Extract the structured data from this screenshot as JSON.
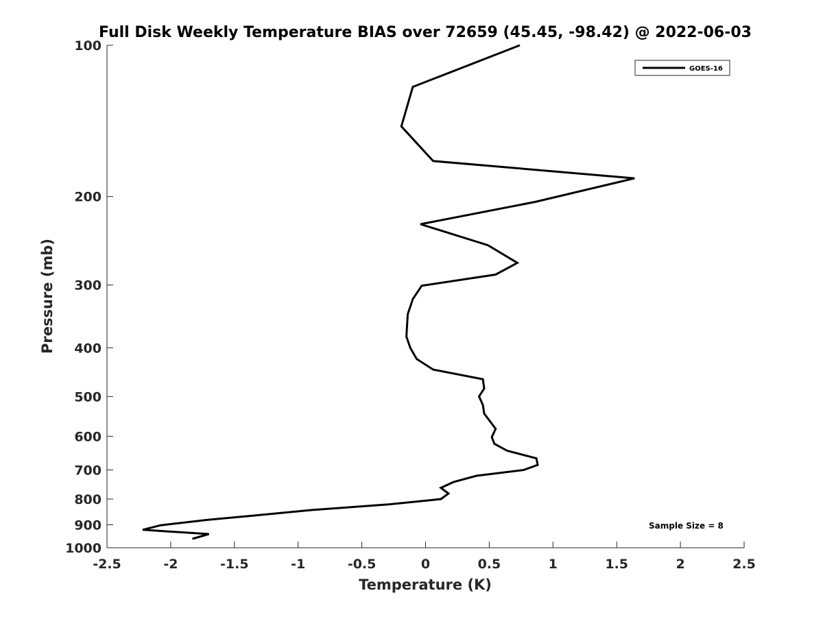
{
  "chart_data": {
    "type": "line",
    "title": "Full Disk Weekly Temperature BIAS over 72659 (45.45, -98.42) @ 2022-06-03",
    "xlabel": "Temperature (K)",
    "ylabel": "Pressure (mb)",
    "xlim": [
      -2.5,
      2.5
    ],
    "ylim": [
      100,
      1000
    ],
    "y_scale": "log",
    "y_reversed": true,
    "x_ticks": [
      -2.5,
      -2,
      -1.5,
      -1,
      -0.5,
      0,
      0.5,
      1,
      1.5,
      2,
      2.5
    ],
    "x_tick_labels": [
      "-2.5",
      "-2",
      "-1.5",
      "-1",
      "-0.5",
      "0",
      "0.5",
      "1",
      "1.5",
      "2",
      "2.5"
    ],
    "y_ticks": [
      100,
      200,
      300,
      400,
      500,
      600,
      700,
      800,
      900,
      1000
    ],
    "y_tick_labels": [
      "100",
      "200",
      "300",
      "400",
      "500",
      "600",
      "700",
      "800",
      "900",
      "1000"
    ],
    "grid": false,
    "legend_position": "top-right",
    "series": [
      {
        "name": "GOES-16",
        "color": "#000000",
        "points": [
          [
            0.74,
            100
          ],
          [
            -0.1,
            121
          ],
          [
            -0.19,
            145
          ],
          [
            0.06,
            170
          ],
          [
            1.64,
            184
          ],
          [
            0.86,
            205
          ],
          [
            -0.04,
            227
          ],
          [
            0.49,
            250
          ],
          [
            0.72,
            271
          ],
          [
            0.55,
            286
          ],
          [
            -0.03,
            301
          ],
          [
            -0.1,
            320
          ],
          [
            -0.14,
            343
          ],
          [
            -0.15,
            380
          ],
          [
            -0.12,
            400
          ],
          [
            -0.07,
            421
          ],
          [
            0.06,
            442
          ],
          [
            0.45,
            462
          ],
          [
            0.46,
            482
          ],
          [
            0.42,
            500
          ],
          [
            0.45,
            520
          ],
          [
            0.46,
            541
          ],
          [
            0.51,
            562
          ],
          [
            0.55,
            580
          ],
          [
            0.52,
            602
          ],
          [
            0.54,
            621
          ],
          [
            0.64,
            641
          ],
          [
            0.87,
            664
          ],
          [
            0.88,
            684
          ],
          [
            0.77,
            700
          ],
          [
            0.4,
            719
          ],
          [
            0.22,
            740
          ],
          [
            0.12,
            760
          ],
          [
            0.18,
            780
          ],
          [
            0.12,
            800
          ],
          [
            -0.29,
            820
          ],
          [
            -0.89,
            841
          ],
          [
            -1.33,
            862
          ],
          [
            -1.71,
            880
          ],
          [
            -2.08,
            902
          ],
          [
            -2.22,
            921
          ],
          [
            -1.7,
            939
          ],
          [
            -1.83,
            960
          ]
        ]
      }
    ],
    "annotations": [
      {
        "text": "Sample Size = 8",
        "position": "bottom-right"
      }
    ]
  }
}
